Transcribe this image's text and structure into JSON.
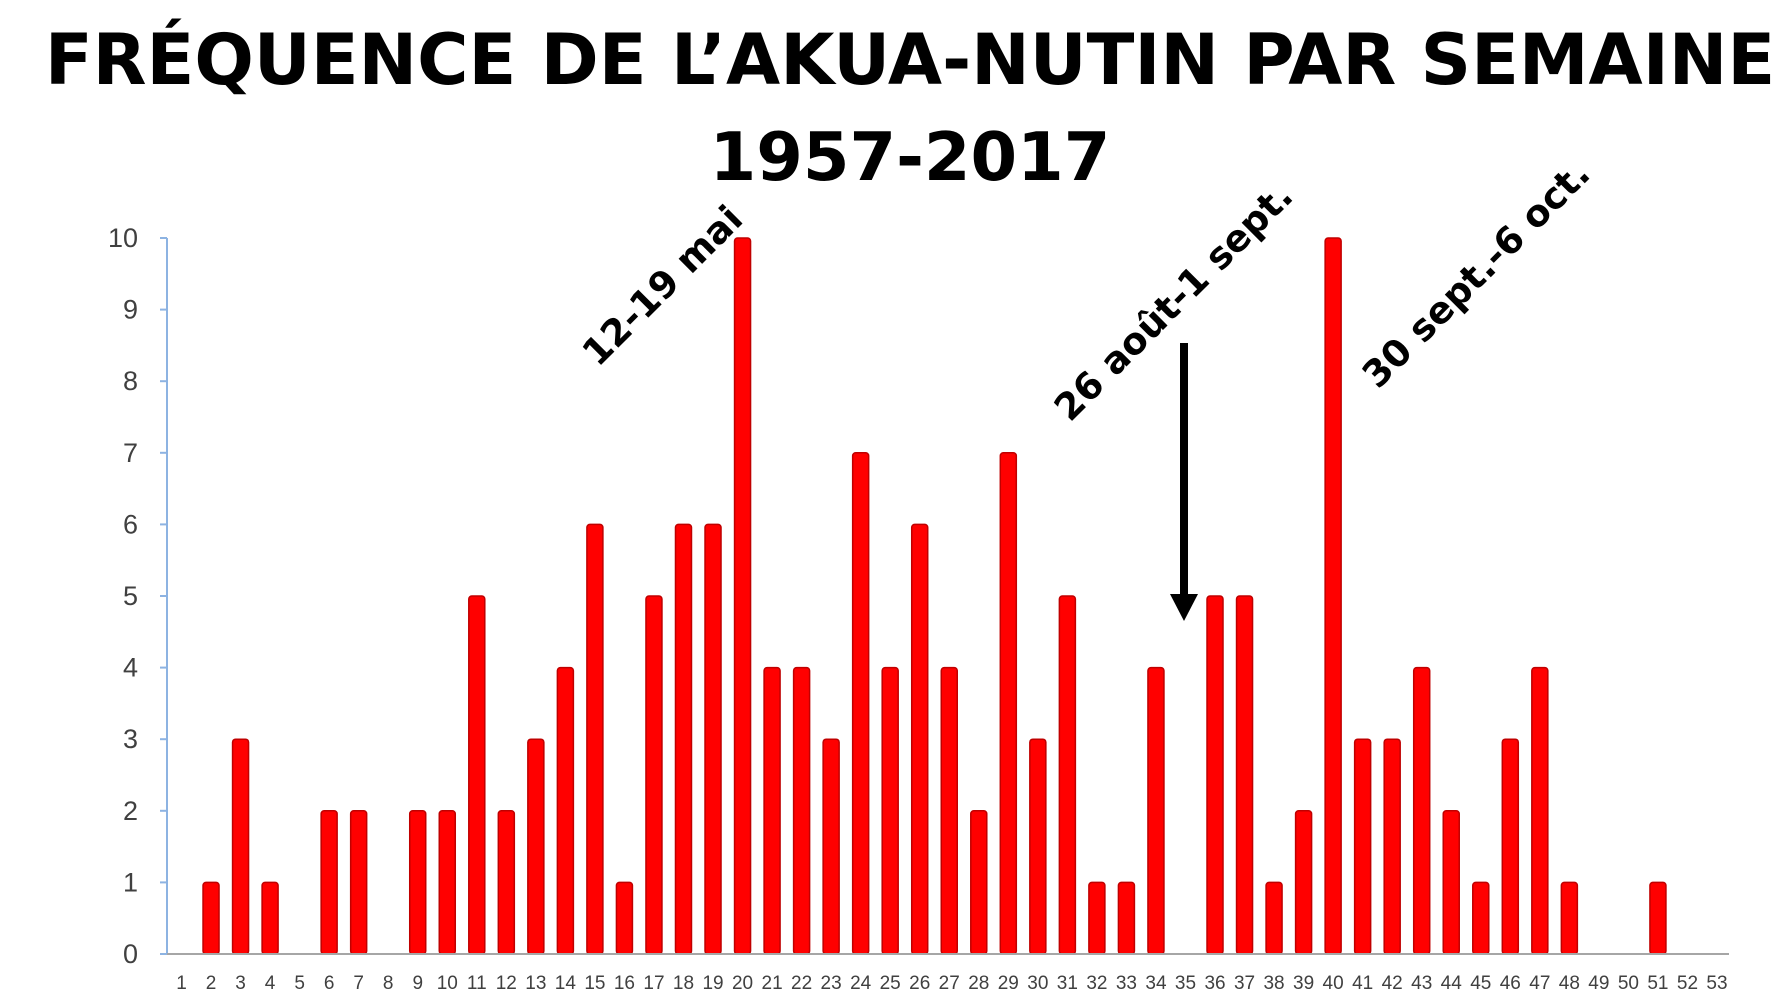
{
  "chart_data": {
    "type": "bar",
    "title": "FRÉQUENCE DE L’AKUA-NUTIN PAR SEMAINE",
    "subtitle": "1957-2017",
    "xlabel": "",
    "ylabel": "",
    "ylim": [
      0,
      10
    ],
    "yticks": [
      "0",
      "1",
      "2",
      "3",
      "4",
      "5",
      "6",
      "7",
      "8",
      "9",
      "10"
    ],
    "categories": [
      "1",
      "2",
      "3",
      "4",
      "5",
      "6",
      "7",
      "8",
      "9",
      "10",
      "11",
      "12",
      "13",
      "14",
      "15",
      "16",
      "17",
      "18",
      "19",
      "20",
      "21",
      "22",
      "23",
      "24",
      "25",
      "26",
      "27",
      "28",
      "29",
      "30",
      "31",
      "32",
      "33",
      "34",
      "35",
      "36",
      "37",
      "38",
      "39",
      "40",
      "41",
      "42",
      "43",
      "44",
      "45",
      "46",
      "47",
      "48",
      "49",
      "50",
      "51",
      "52",
      "53"
    ],
    "values": [
      0,
      1,
      3,
      1,
      0,
      2,
      2,
      0,
      2,
      2,
      5,
      2,
      3,
      4,
      6,
      1,
      5,
      6,
      6,
      10,
      4,
      4,
      3,
      7,
      4,
      6,
      4,
      2,
      7,
      3,
      5,
      1,
      1,
      4,
      0,
      5,
      5,
      1,
      2,
      10,
      3,
      3,
      4,
      2,
      1,
      3,
      4,
      1,
      0,
      0,
      1,
      0,
      0
    ],
    "grid": false,
    "legend": "none",
    "bar_color": "#ff0000",
    "bar_edge_color": "#c00000",
    "annotations": [
      {
        "text": "12-19 mai",
        "x": "20"
      },
      {
        "text": "26 août-1 sept.",
        "x": "35",
        "arrow": true
      },
      {
        "text": "30 sept.-6 oct.",
        "x": "40"
      }
    ]
  }
}
